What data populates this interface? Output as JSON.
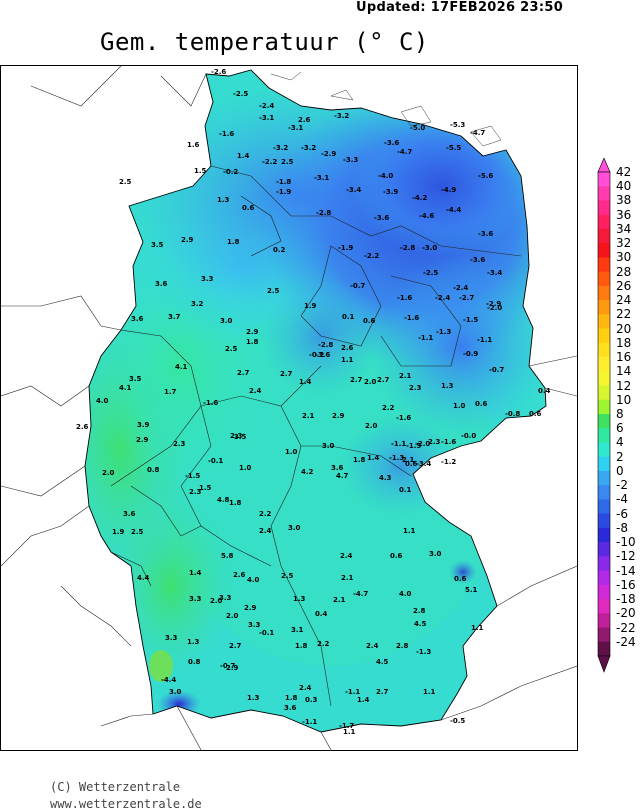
{
  "header": {
    "updated": "Updated:  17FEB2026 23:50",
    "title": "Gem. temperatuur (° C)"
  },
  "map": {
    "region": "Germany",
    "field": "mean temperature",
    "unit": "° C",
    "station_values": [
      "-2.6",
      "-2.5",
      "-2.4",
      "-3.1",
      "2.6",
      "-3.1",
      "-3.2",
      "-3.2",
      "-1.6",
      "1.6",
      "1.4",
      "-3.2",
      "-2.9",
      "-2.2",
      "2.5",
      "-3.3",
      "-3.6",
      "-5.0",
      "-5.3",
      "-4.7",
      "-4.7",
      "-5.5",
      "-5.6",
      "1.5",
      "-0.2",
      "-1.8",
      "-1.9",
      "-3.1",
      "-4.0",
      "-3.4",
      "-3.9",
      "-4.2",
      "-4.9",
      "2.5",
      "1.3",
      "0.6",
      "-2.8",
      "-3.6",
      "-4.6",
      "-4.4",
      "2.9",
      "1.8",
      "0.2",
      "-1.9",
      "-2.2",
      "-2.8",
      "-3.0",
      "-3.6",
      "3.5",
      "-2.5",
      "-3.6",
      "-3.4",
      "3.3",
      "-0.7",
      "-2.4",
      "-2.4",
      "-2.7",
      "-2.9",
      "3.6",
      "2.5",
      "-1.6",
      "-2.0",
      "3.2",
      "3.7",
      "1.9",
      "3.6",
      "3.0",
      "0.1",
      "0.6",
      "-1.6",
      "-1.5",
      "-1.3",
      "-1.1",
      "-1.1",
      "2.9",
      "-2.8",
      "-3.6",
      "2.6",
      "2.5",
      "1.8",
      "-0.2",
      "1.1",
      "-0.9",
      "4.1",
      "2.7",
      "2.7",
      "1.4",
      "2.7",
      "2.0",
      "2.7",
      "2.1",
      "2.3",
      "1.3",
      "-0.7",
      "3.5",
      "4.1",
      "1.7",
      "2.4",
      "-1.6",
      "0.4",
      "4.0",
      "2.2",
      "1.0",
      "0.6",
      "-0.8",
      "0.6",
      "2.6",
      "3.9",
      "2.3",
      "2.1",
      "2.9",
      "2.0",
      "-1.6",
      "3.5",
      "-0.0",
      "2.3",
      "-2.0",
      "2.9",
      "2.3",
      "1.0",
      "-0.1",
      "1.0",
      "3.0",
      "-1.1",
      "-1.5",
      "1.8",
      "-1.3",
      "1.4",
      "2.1",
      "-1.6",
      "-3.4",
      "-1.2",
      "4.2",
      "3.6",
      "2.0",
      "0.8",
      "-1.5",
      "2.3",
      "4.7",
      "4.3",
      "0.6",
      "1.5",
      "4.8",
      "1.8",
      "0.1",
      "3.6",
      "1.9",
      "2.5",
      "2.2",
      "3.0",
      "1.1",
      "2.4",
      "5.8",
      "1.4",
      "2.6",
      "0.6",
      "2.4",
      "3.0",
      "4.4",
      "4.0",
      "2.5",
      "2.1",
      "-4.7",
      "0.6",
      "5.1",
      "3.3",
      "3.3",
      "2.0",
      "2.9",
      "1.3",
      "2.1",
      "4.0",
      "2.0",
      "2.8",
      "3.3",
      "0.4",
      "3.1",
      "4.5",
      "-0.1",
      "1.8",
      "3.3",
      "1.3",
      "1.1",
      "0.8",
      "2.7",
      "2.2",
      "2.4",
      "2.8",
      "-1.3",
      "-0.7",
      "2.9",
      "4.5",
      "-4.4",
      "3.0",
      "1.3",
      "1.8",
      "0.3",
      "2.4",
      "-1.1",
      "2.7",
      "1.4",
      "1.1",
      "3.6",
      "-1.1",
      "-0.5",
      "-1.7",
      "1.1"
    ]
  },
  "colorbar": {
    "labels": [
      "42",
      "40",
      "38",
      "36",
      "34",
      "32",
      "30",
      "28",
      "26",
      "24",
      "22",
      "20",
      "18",
      "16",
      "14",
      "12",
      "10",
      "8",
      "6",
      "4",
      "2",
      "0",
      "-2",
      "-4",
      "-6",
      "-8",
      "-10",
      "-12",
      "-14",
      "-16",
      "-18",
      "-20",
      "-22",
      "-24"
    ],
    "colors": [
      "#ff4fd8",
      "#ff3bb0",
      "#ff2a8a",
      "#ff2060",
      "#f51a3a",
      "#f5141a",
      "#ff3a10",
      "#ff5a10",
      "#ff7a10",
      "#ff9a10",
      "#ffb810",
      "#ffd010",
      "#ffe020",
      "#ffee30",
      "#f5f530",
      "#d8f530",
      "#9ef530",
      "#40e060",
      "#30e8a0",
      "#30e8d0",
      "#30d0f0",
      "#3aa8f0",
      "#3a88f0",
      "#2f6ae8",
      "#2a4ae0",
      "#2a2ad8",
      "#5a2ae0",
      "#8a2ae8",
      "#b02ae8",
      "#d02ad8",
      "#e02ac0",
      "#c0209a",
      "#90186e",
      "#601048"
    ]
  },
  "footer": {
    "copyright": "(C) Wetterzentrale",
    "url": "www.wetterzentrale.de"
  }
}
